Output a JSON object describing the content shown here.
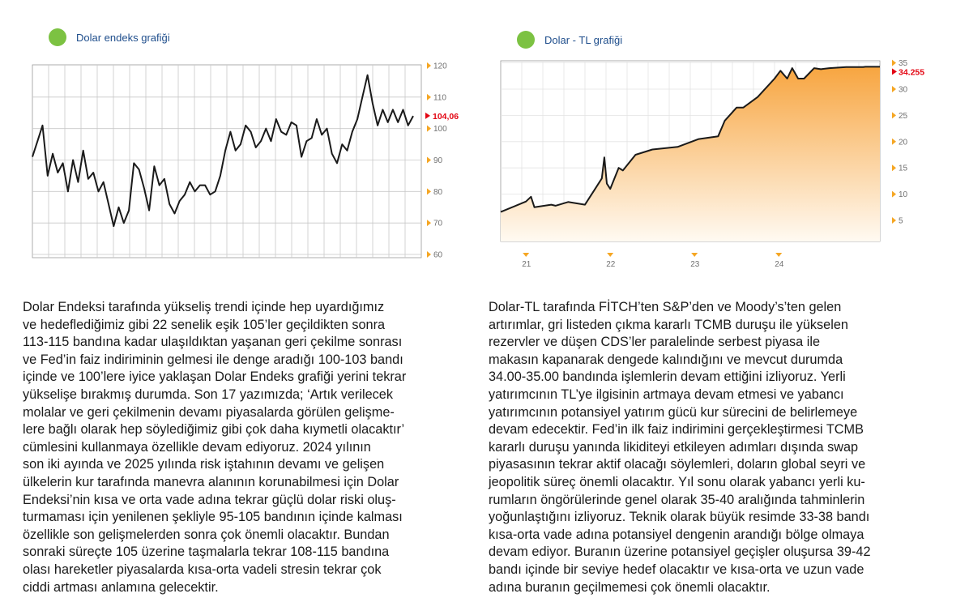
{
  "colors": {
    "line": "#1a1a1a",
    "grid": "#c8c8c8",
    "fill_top": "#f7a540",
    "fill_bottom": "#fffaf2",
    "marker": "#e30613",
    "tick_arrow": "#f5a623",
    "title": "#1f4e8c",
    "dot": "#7cc242",
    "tick_text": "#707070"
  },
  "chart_data": [
    {
      "type": "line",
      "title": "Dolar endeks grafiği",
      "yticks": [
        "120",
        "110",
        "100",
        "90",
        "80",
        "70",
        "60"
      ],
      "ytick_values": [
        120,
        110,
        100,
        90,
        80,
        70,
        60
      ],
      "ylim": [
        60,
        120
      ],
      "grid": true,
      "last_value_label": "104,06",
      "last_value": 104.06,
      "values": [
        91,
        96,
        101,
        85,
        92,
        86,
        89,
        80,
        90,
        83,
        93,
        84,
        86,
        80,
        83,
        76,
        69,
        75,
        70,
        74,
        89,
        87,
        81,
        74,
        88,
        82,
        84,
        76,
        73,
        77,
        79,
        83,
        80,
        82,
        82,
        79,
        80,
        85,
        93,
        99,
        93,
        95,
        101,
        99,
        94,
        96,
        100,
        96,
        103,
        99,
        98,
        102,
        101,
        91,
        96,
        97,
        103,
        98,
        100,
        92,
        89,
        95,
        93,
        99,
        103,
        110,
        117,
        108,
        101,
        106,
        102,
        106,
        102,
        106,
        101,
        104
      ]
    },
    {
      "type": "area",
      "title": "Dolar - TL grafiği",
      "yticks": [
        "35",
        "30",
        "25",
        "20",
        "15",
        "10",
        "5"
      ],
      "ytick_values": [
        35,
        30,
        25,
        20,
        15,
        10,
        5
      ],
      "ylim": [
        0,
        35
      ],
      "xticks": [
        "21",
        "22",
        "23",
        "24"
      ],
      "xtick_positions": [
        21,
        22,
        23,
        24
      ],
      "xlim": [
        20.7,
        25.2
      ],
      "grid": true,
      "last_value_label": "34.255",
      "last_value": 34.255,
      "x": [
        20.7,
        21.0,
        21.06,
        21.1,
        21.3,
        21.35,
        21.5,
        21.7,
        21.8,
        21.9,
        21.93,
        21.96,
        22.0,
        22.1,
        22.15,
        22.3,
        22.5,
        22.8,
        23.05,
        23.28,
        23.36,
        23.5,
        23.58,
        23.75,
        23.95,
        24.02,
        24.1,
        24.16,
        24.23,
        24.3,
        24.42,
        24.5,
        24.6,
        24.8,
        25.0,
        25.03,
        25.2
      ],
      "values": [
        6.6,
        8.6,
        9.5,
        7.5,
        8.0,
        7.8,
        8.5,
        8.0,
        10.5,
        13.0,
        17.0,
        12.0,
        11.0,
        15.0,
        14.5,
        17.5,
        18.5,
        19.0,
        20.5,
        21.0,
        24.0,
        26.5,
        26.5,
        28.5,
        32.0,
        33.5,
        32.0,
        34.0,
        32.0,
        32.0,
        34.0,
        33.8,
        34.0,
        34.2,
        34.2,
        34.255,
        34.255
      ]
    }
  ],
  "texts": {
    "left": [
      "Dolar Endeksi tarafında yükseliş trendi içinde hep uyardığımız",
      "ve hedeflediğimiz gibi 22 senelik eşik 105’ler geçildikten sonra",
      "113-115 bandına kadar ulaşıldıktan yaşanan geri çekilme sonrası",
      "ve Fed’in faiz indiriminin gelmesi ile denge aradığı 100-103 bandı",
      "içinde ve 100’lere iyice yaklaşan Dolar Endeks grafiği yerini tekrar",
      "yükselişe bırakmış durumda. Son 17 yazımızda; ‘Artık verilecek",
      "molalar ve geri çekilmenin devamı piyasalarda görülen gelişme-",
      "lere bağlı olarak hep söylediğimiz gibi çok daha kıymetli olacaktır’",
      "cümlesini kullanmaya özellikle devam ediyoruz. 2024 yılının",
      "son iki ayında ve 2025 yılında risk iştahının devamı ve gelişen",
      "ülkelerin kur tarafında manevra alanının korunabilmesi için Dolar",
      "Endeksi’nin kısa ve orta vade adına tekrar güçlü dolar riski oluş-",
      "turmaması için yenilenen şekliyle 95-105 bandının içinde kalması",
      "özellikle son gelişmelerden sonra çok önemli olacaktır. Bundan",
      "sonraki süreçte 105 üzerine taşmalarla tekrar 108-115 bandına",
      "olası hareketler piyasalarda kısa-orta vadeli stresin tekrar çok",
      "ciddi artması anlamına gelecektir."
    ],
    "right": [
      "Dolar-TL tarafında FİTCH’ten S&P’den ve Moody’s’ten gelen",
      "artırımlar, gri listeden çıkma kararlı TCMB duruşu ile yükselen",
      "rezervler ve düşen CDS’ler paralelinde serbest piyasa ile",
      "makasın kapanarak dengede kalındığını ve mevcut durumda",
      "34.00-35.00 bandında işlemlerin devam ettiğini izliyoruz. Yerli",
      "yatırımcının TL’ye ilgisinin artmaya devam etmesi ve yabancı",
      "yatırımcının potansiyel yatırım gücü kur sürecini de belirlemeye",
      "devam edecektir. Fed’in ilk faiz indirimini gerçekleştirmesi TCMB",
      "kararlı duruşu yanında likiditeyi etkileyen adımları dışında swap",
      "piyasasının tekrar aktif olacağı söylemleri, doların global seyri ve",
      "jeopolitik süreç önemli olacaktır. Yıl sonu olarak yabancı yerli ku-",
      "rumların öngörülerinde genel olarak 35-40 aralığında tahminlerin",
      "yoğunlaştığını izliyoruz. Teknik olarak büyük resimde 33-38 bandı",
      "kısa-orta vade adına potansiyel dengenin arandığı bölge olmaya",
      "devam ediyor. Buranın üzerine potansiyel geçişler oluşursa 39-42",
      "bandı içinde bir seviye hedef olacaktır ve kısa-orta ve uzun vade",
      "adına buranın geçilmemesi çok önemli olacaktır."
    ]
  }
}
